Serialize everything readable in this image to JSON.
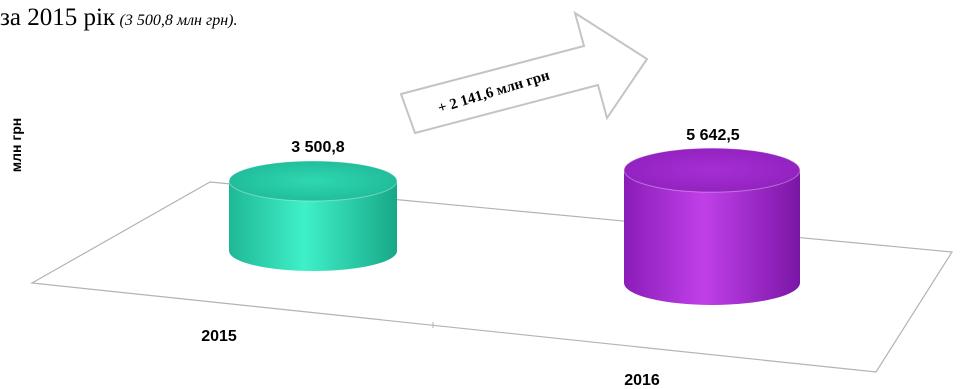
{
  "header": {
    "prefix": "за 2015 рік",
    "note": "(3 500,8 млн грн)."
  },
  "colors": {
    "series_2015": "#2fe0b8",
    "series_2016": "#a32ad0",
    "axis": "#b3b3b3"
  },
  "chart_data": {
    "type": "bar",
    "style": "3d-cylinder",
    "categories": [
      "2015",
      "2016"
    ],
    "values": [
      3500.8,
      5642.5
    ],
    "value_labels": [
      "3 500,8",
      "5 642,5"
    ],
    "ylabel": "млн грн",
    "ylim": [
      0,
      6000
    ],
    "grid": false,
    "annotation": "+ 2 141,6 млн грн"
  }
}
